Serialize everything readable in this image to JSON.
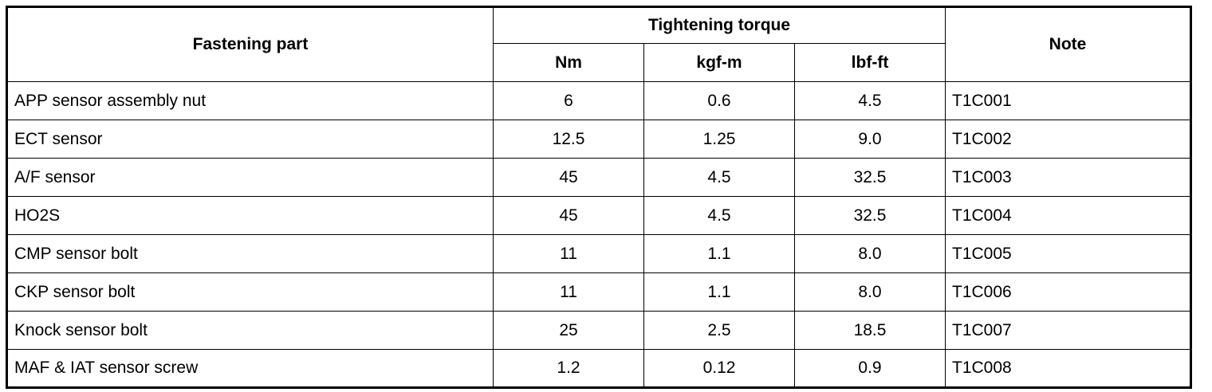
{
  "table": {
    "header": {
      "part": "Fastening part",
      "group": "Tightening torque",
      "units": [
        "Nm",
        "kgf-m",
        "lbf-ft"
      ],
      "note": "Note"
    },
    "rows": [
      [
        "APP sensor assembly nut",
        "6",
        "0.6",
        "4.5",
        "T1C001"
      ],
      [
        "ECT sensor",
        "12.5",
        "1.25",
        "9.0",
        "T1C002"
      ],
      [
        "A/F sensor",
        "45",
        "4.5",
        "32.5",
        "T1C003"
      ],
      [
        "HO2S",
        "45",
        "4.5",
        "32.5",
        "T1C004"
      ],
      [
        "CMP sensor bolt",
        "11",
        "1.1",
        "8.0",
        "T1C005"
      ],
      [
        "CKP sensor bolt",
        "11",
        "1.1",
        "8.0",
        "T1C006"
      ],
      [
        "Knock sensor bolt",
        "25",
        "2.5",
        "18.5",
        "T1C007"
      ],
      [
        "MAF & IAT sensor screw",
        "1.2",
        "0.12",
        "0.9",
        "T1C008"
      ]
    ]
  }
}
